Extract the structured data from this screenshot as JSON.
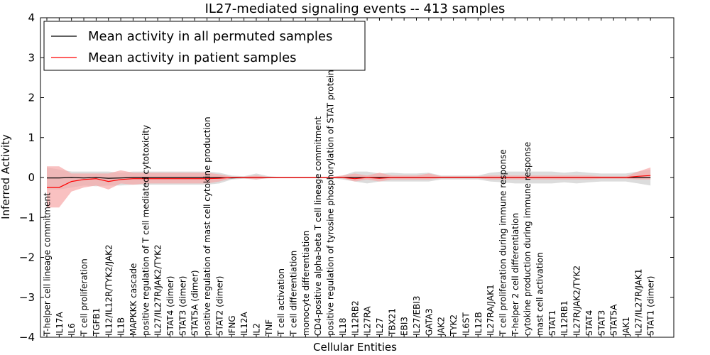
{
  "chart_data": {
    "type": "line",
    "title": "IL27-mediated signaling events -- 413 samples",
    "xlabel": "Cellular Entities",
    "ylabel": "Inferred Activity",
    "ylim": [
      -4,
      4
    ],
    "yticks": [
      "−4",
      "−3",
      "−2",
      "−1",
      "0",
      "1",
      "2",
      "3",
      "4"
    ],
    "grid": false,
    "legend_position": "top-left",
    "categories": [
      "T-helper cell lineage commitment",
      "IL17A",
      "IL6",
      "T cell proliferation",
      "TGFB1",
      "IL12/IL12R/TYK2/JAK2",
      "IL1B",
      "MAPKKK cascade",
      "positive regulation of T cell mediated cytotoxicity",
      "IL27/IL27R/JAK2/TYK2",
      "STAT4 (dimer)",
      "STAT3 (dimer)",
      "STAT5A (dimer)",
      "positive regulation of mast cell cytokine production",
      "STAT2 (dimer)",
      "IFNG",
      "IL12A",
      "IL2",
      "TNF",
      "T cell activation",
      "T cell differentiation",
      "monocyte differentiation",
      "CD4-positive alpha-beta T cell lineage commitment",
      "positive regulation of tyrosine phosphorylation of STAT protein",
      "IL18",
      "IL12RB2",
      "IL27RA",
      "IL27",
      "TBX21",
      "EBI3",
      "IL27/EBI3",
      "GATA3",
      "JAK2",
      "TYK2",
      "IL6ST",
      "IL12B",
      "IL27RA/JAK1",
      "T cell proliferation during immune response",
      "T-helper 2 cell differentiation",
      "cytokine production during immune response",
      "mast cell activation",
      "STAT1",
      "IL12RB1",
      "IL27R/JAK2/TYK2",
      "STAT4",
      "STAT3",
      "STAT5A",
      "JAK1",
      "IL27/IL27R/JAK1",
      "STAT1 (dimer)"
    ],
    "series": [
      {
        "name": "Mean activity in all permuted samples",
        "color": "#000000",
        "band_color": "#d0d0d0",
        "values": [
          -0.01,
          -0.01,
          0.0,
          -0.01,
          0.0,
          -0.02,
          -0.01,
          0.0,
          0.0,
          0.0,
          0.0,
          0.0,
          0.0,
          0.0,
          0.0,
          -0.01,
          0.0,
          0.0,
          0.0,
          0.0,
          0.0,
          0.0,
          0.0,
          0.0,
          0.0,
          0.0,
          0.0,
          0.0,
          0.0,
          0.0,
          0.0,
          0.0,
          0.0,
          0.0,
          0.0,
          0.0,
          0.0,
          0.0,
          0.0,
          0.0,
          0.0,
          0.0,
          0.0,
          0.0,
          0.0,
          0.0,
          0.0,
          0.0,
          0.0,
          0.0
        ],
        "lower": [
          -0.3,
          -0.3,
          -0.25,
          -0.2,
          -0.22,
          -0.2,
          -0.2,
          -0.18,
          -0.18,
          -0.18,
          -0.18,
          -0.18,
          -0.18,
          -0.18,
          -0.15,
          -0.05,
          -0.03,
          -0.05,
          -0.02,
          -0.01,
          -0.01,
          -0.01,
          -0.01,
          -0.01,
          -0.05,
          -0.1,
          -0.15,
          -0.1,
          -0.1,
          -0.1,
          -0.1,
          -0.1,
          -0.05,
          -0.05,
          -0.05,
          -0.05,
          -0.1,
          -0.12,
          -0.15,
          -0.15,
          -0.15,
          -0.15,
          -0.12,
          -0.15,
          -0.12,
          -0.1,
          -0.1,
          -0.1,
          -0.15,
          -0.2
        ],
        "upper": [
          0.25,
          0.2,
          0.15,
          0.15,
          0.15,
          0.15,
          0.12,
          0.15,
          0.15,
          0.15,
          0.15,
          0.15,
          0.15,
          0.15,
          0.12,
          0.05,
          0.03,
          0.1,
          0.03,
          0.01,
          0.01,
          0.01,
          0.01,
          0.01,
          0.05,
          0.15,
          0.15,
          0.1,
          0.12,
          0.1,
          0.1,
          0.12,
          0.05,
          0.05,
          0.05,
          0.05,
          0.12,
          0.15,
          0.15,
          0.15,
          0.15,
          0.15,
          0.12,
          0.15,
          0.12,
          0.1,
          0.1,
          0.1,
          0.15,
          0.2
        ]
      },
      {
        "name": "Mean activity in patient samples",
        "color": "#ff0000",
        "band_color": "#f7a6a6",
        "values": [
          -0.25,
          -0.25,
          -0.1,
          -0.05,
          -0.03,
          -0.1,
          -0.05,
          -0.03,
          -0.03,
          -0.03,
          -0.03,
          -0.03,
          -0.03,
          -0.03,
          -0.02,
          0.0,
          0.0,
          0.0,
          0.0,
          0.0,
          0.0,
          0.0,
          0.0,
          0.0,
          0.0,
          -0.03,
          0.0,
          -0.02,
          0.0,
          0.0,
          0.0,
          0.0,
          0.0,
          0.0,
          0.0,
          0.0,
          0.0,
          0.0,
          0.0,
          0.0,
          0.0,
          0.0,
          0.0,
          0.0,
          0.0,
          0.0,
          0.0,
          0.0,
          0.03,
          0.05
        ],
        "lower": [
          -0.75,
          -0.75,
          -0.35,
          -0.25,
          -0.2,
          -0.3,
          -0.15,
          -0.18,
          -0.15,
          -0.15,
          -0.15,
          -0.15,
          -0.15,
          -0.15,
          -0.1,
          -0.02,
          -0.02,
          -0.05,
          -0.01,
          -0.01,
          -0.01,
          -0.01,
          -0.01,
          -0.01,
          -0.02,
          -0.1,
          -0.05,
          -0.1,
          -0.05,
          -0.05,
          -0.05,
          -0.05,
          -0.02,
          -0.02,
          -0.02,
          -0.02,
          -0.05,
          -0.05,
          -0.05,
          -0.05,
          -0.05,
          -0.05,
          -0.05,
          -0.05,
          -0.05,
          -0.03,
          -0.03,
          -0.03,
          -0.05,
          -0.05
        ],
        "upper": [
          0.28,
          0.28,
          0.1,
          0.1,
          0.1,
          0.1,
          0.18,
          0.12,
          0.12,
          0.12,
          0.12,
          0.12,
          0.12,
          0.12,
          0.08,
          0.02,
          0.02,
          0.05,
          0.01,
          0.01,
          0.01,
          0.01,
          0.01,
          0.01,
          0.05,
          0.1,
          0.05,
          0.12,
          0.05,
          0.05,
          0.05,
          0.1,
          0.03,
          0.03,
          0.03,
          0.03,
          0.05,
          0.05,
          0.05,
          0.05,
          0.05,
          0.05,
          0.05,
          0.05,
          0.05,
          0.03,
          0.03,
          0.03,
          0.15,
          0.25
        ]
      }
    ]
  }
}
